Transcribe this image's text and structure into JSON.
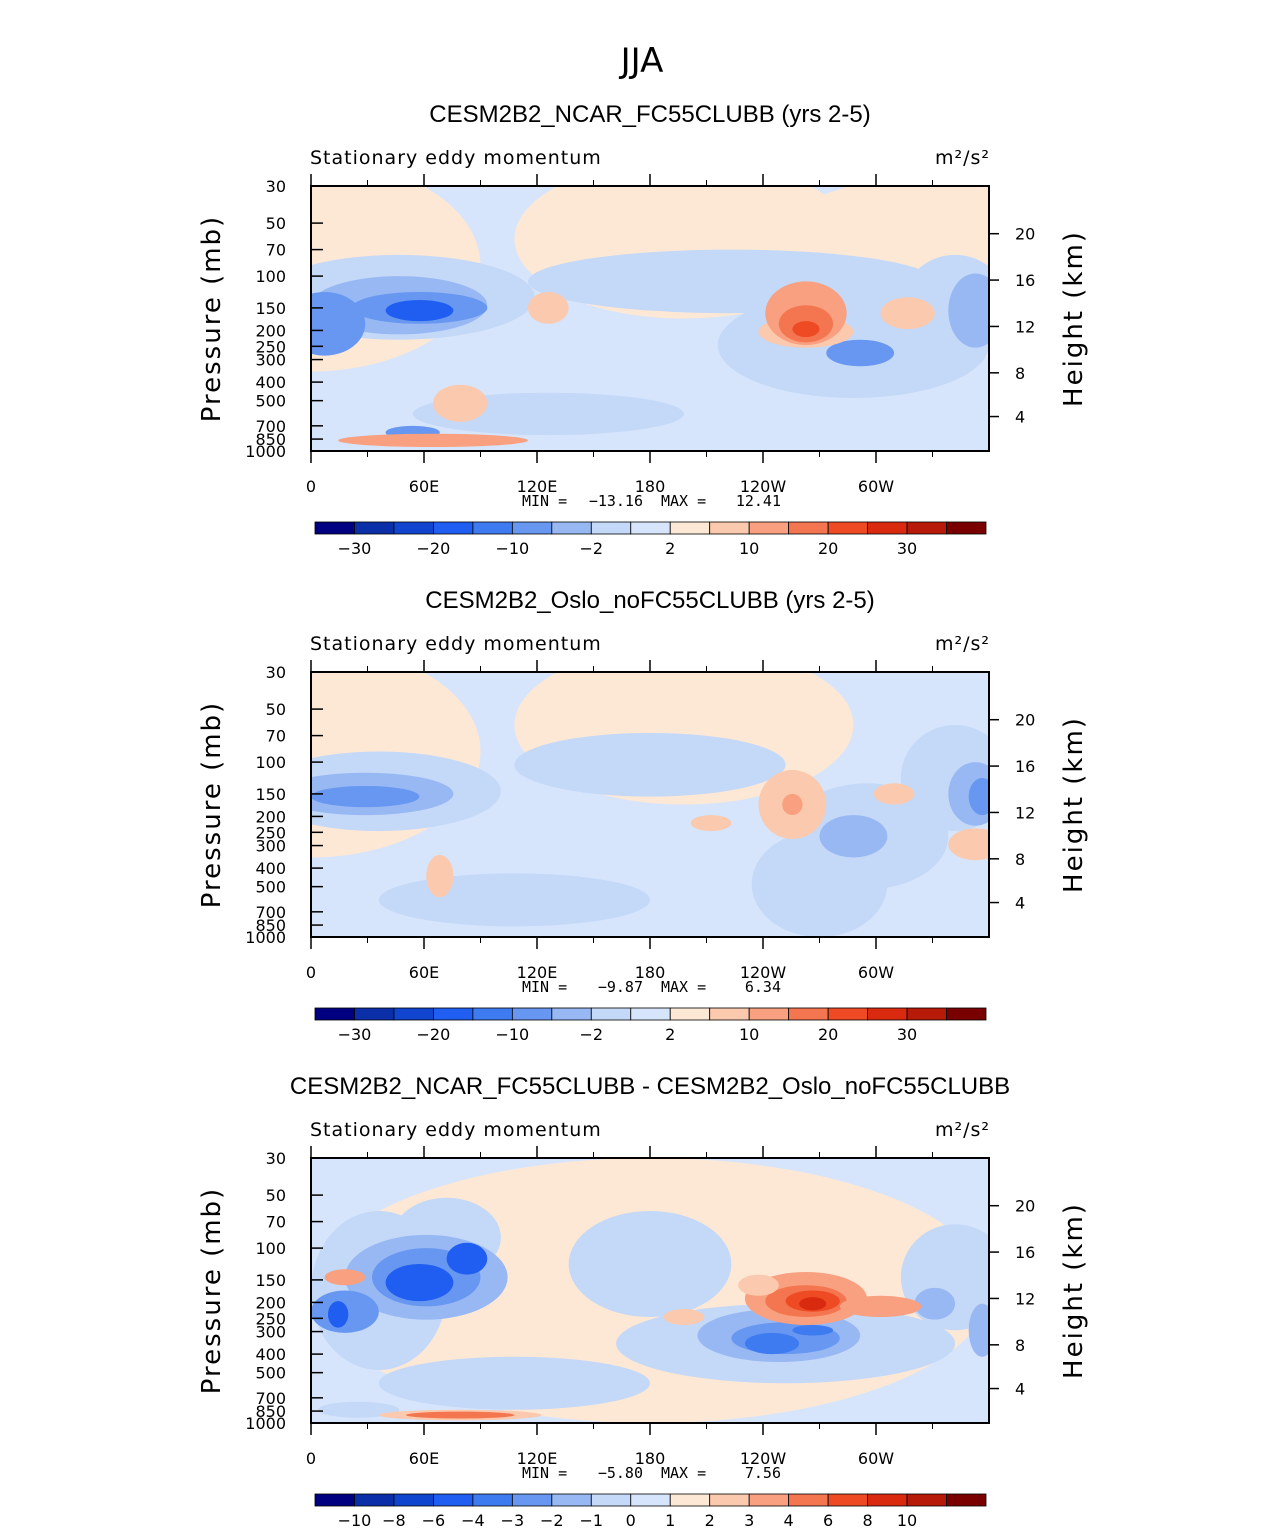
{
  "figure_title": "JJA",
  "colors": {
    "levels": [
      "#000080",
      "#0a2fa8",
      "#0f45cf",
      "#1f5ef0",
      "#3f7bf0",
      "#6797f0",
      "#98b8f4",
      "#c4d8f8",
      "#d6e5fb",
      "#fde8d6",
      "#fbc9ad",
      "#f8a07f",
      "#f47650",
      "#ee4a24",
      "#d92a10",
      "#b71a08",
      "#7a0000"
    ]
  },
  "chart_data": [
    {
      "type": "heatmap",
      "title": "CESM2B2_NCAR_FC55CLUBB (yrs 2-5)",
      "left_label": "Stationary eddy momentum",
      "right_label": "m²/s²",
      "ylabel": "Pressure (mb)",
      "ylabel_right": "Height (km)",
      "y_ticks": [
        "30",
        "50",
        "70",
        "100",
        "150",
        "200",
        "250",
        "300",
        "400",
        "500",
        "700",
        "850",
        "1000"
      ],
      "y_right_ticks": [
        "20",
        "16",
        "12",
        "8",
        "4"
      ],
      "x_ticks": [
        "0",
        "60E",
        "120E",
        "180",
        "120W",
        "60W"
      ],
      "min_label": "MIN =",
      "min": "−13.16",
      "max_label": "MAX =",
      "max": "12.41",
      "colorbar_labels": [
        "−30",
        "−20",
        "−10",
        "−2",
        "2",
        "10",
        "20",
        "30"
      ]
    },
    {
      "type": "heatmap",
      "title": "CESM2B2_Oslo_noFC55CLUBB (yrs 2-5)",
      "left_label": "Stationary eddy momentum",
      "right_label": "m²/s²",
      "ylabel": "Pressure (mb)",
      "ylabel_right": "Height (km)",
      "y_ticks": [
        "30",
        "50",
        "70",
        "100",
        "150",
        "200",
        "250",
        "300",
        "400",
        "500",
        "700",
        "850",
        "1000"
      ],
      "y_right_ticks": [
        "20",
        "16",
        "12",
        "8",
        "4"
      ],
      "x_ticks": [
        "0",
        "60E",
        "120E",
        "180",
        "120W",
        "60W"
      ],
      "min_label": "MIN =",
      "min": "−9.87",
      "max_label": "MAX =",
      "max": "6.34",
      "colorbar_labels": [
        "−30",
        "−20",
        "−10",
        "−2",
        "2",
        "10",
        "20",
        "30"
      ]
    },
    {
      "type": "heatmap",
      "title": "CESM2B2_NCAR_FC55CLUBB - CESM2B2_Oslo_noFC55CLUBB",
      "left_label": "Stationary eddy momentum",
      "right_label": "m²/s²",
      "ylabel": "Pressure (mb)",
      "ylabel_right": "Height (km)",
      "y_ticks": [
        "30",
        "50",
        "70",
        "100",
        "150",
        "200",
        "250",
        "300",
        "400",
        "500",
        "700",
        "850",
        "1000"
      ],
      "y_right_ticks": [
        "20",
        "16",
        "12",
        "8",
        "4"
      ],
      "x_ticks": [
        "0",
        "60E",
        "120E",
        "180",
        "120W",
        "60W"
      ],
      "min_label": "MIN =",
      "min": "−5.80",
      "max_label": "MAX =",
      "max": "7.56",
      "colorbar_labels": [
        "−10",
        "−8",
        "−6",
        "−4",
        "−3",
        "−2",
        "−1",
        "0",
        "1",
        "2",
        "3",
        "4",
        "6",
        "8",
        "10"
      ]
    }
  ]
}
